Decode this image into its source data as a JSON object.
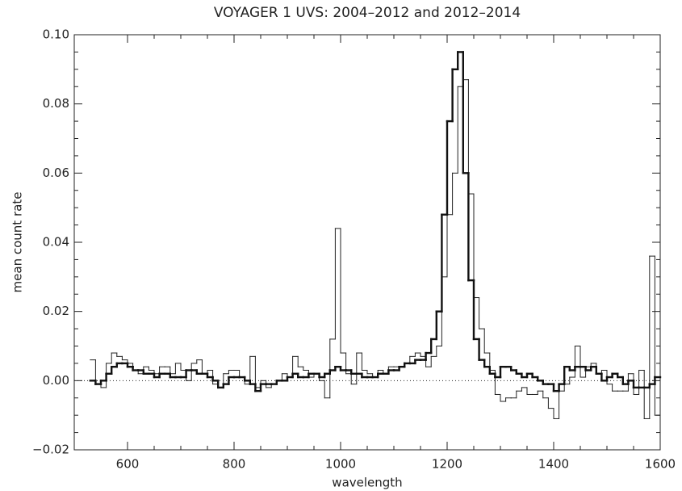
{
  "chart_data": {
    "type": "line",
    "drawstyle": "steps-mid",
    "title": "VOYAGER 1 UVS: 2004–2012 and 2012–2014",
    "xlabel": "wavelength",
    "ylabel": "mean count rate",
    "xlim": [
      500,
      1600
    ],
    "ylim": [
      -0.02,
      0.1
    ],
    "xticks": [
      600,
      800,
      1000,
      1200,
      1400,
      1600
    ],
    "yticks": [
      {
        "value": -0.02,
        "label": "−0.02"
      },
      {
        "value": 0,
        "label": "0.00"
      },
      {
        "value": 0.02,
        "label": "0.02"
      },
      {
        "value": 0.04,
        "label": "0.04"
      },
      {
        "value": 0.06,
        "label": "0.06"
      },
      {
        "value": 0.08,
        "label": "0.08"
      },
      {
        "value": 0.1,
        "label": "0.10"
      }
    ],
    "minor_divisions": {
      "x": 4,
      "y": 4
    },
    "reference_line": 0,
    "x": [
      535,
      545,
      555,
      565,
      575,
      585,
      595,
      605,
      615,
      625,
      635,
      645,
      655,
      665,
      675,
      685,
      695,
      705,
      715,
      725,
      735,
      745,
      755,
      765,
      775,
      785,
      795,
      805,
      815,
      825,
      835,
      845,
      855,
      865,
      875,
      885,
      895,
      905,
      915,
      925,
      935,
      945,
      955,
      965,
      975,
      985,
      995,
      1005,
      1015,
      1025,
      1035,
      1045,
      1055,
      1065,
      1075,
      1085,
      1095,
      1105,
      1115,
      1125,
      1135,
      1145,
      1155,
      1165,
      1175,
      1185,
      1195,
      1205,
      1215,
      1225,
      1235,
      1245,
      1255,
      1265,
      1275,
      1285,
      1295,
      1305,
      1315,
      1325,
      1335,
      1345,
      1355,
      1365,
      1375,
      1385,
      1395,
      1405,
      1415,
      1425,
      1435,
      1445,
      1455,
      1465,
      1475,
      1485,
      1495,
      1505,
      1515,
      1525,
      1535,
      1545,
      1555,
      1565,
      1575,
      1585,
      1595
    ],
    "series": [
      {
        "color": "#222222",
        "width": 1,
        "values": [
          0.006,
          -0.001,
          -0.002,
          0.005,
          0.008,
          0.007,
          0.006,
          0.005,
          0.003,
          0.002,
          0.004,
          0.003,
          0.002,
          0.004,
          0.004,
          0.002,
          0.005,
          0.003,
          0.0,
          0.005,
          0.006,
          0.002,
          0.003,
          -0.001,
          -0.002,
          0.002,
          0.003,
          0.003,
          0.001,
          -0.001,
          0.007,
          -0.002,
          0.0,
          -0.002,
          -0.001,
          0.0,
          0.002,
          0.001,
          0.007,
          0.004,
          0.003,
          0.001,
          0.002,
          0.0,
          -0.005,
          0.012,
          0.044,
          0.008,
          0.002,
          -0.001,
          0.008,
          0.003,
          0.002,
          0.001,
          0.003,
          0.002,
          0.004,
          0.004,
          0.004,
          0.005,
          0.007,
          0.008,
          0.007,
          0.004,
          0.007,
          0.01,
          0.03,
          0.048,
          0.06,
          0.085,
          0.087,
          0.054,
          0.024,
          0.015,
          0.008,
          0.003,
          -0.004,
          -0.006,
          -0.005,
          -0.005,
          -0.003,
          -0.002,
          -0.004,
          -0.004,
          -0.003,
          -0.005,
          -0.008,
          -0.011,
          -0.003,
          -0.001,
          0.001,
          0.01,
          0.001,
          0.004,
          0.005,
          0.002,
          0.003,
          -0.001,
          -0.003,
          -0.003,
          -0.003,
          0.002,
          -0.004,
          0.003,
          -0.011,
          0.036,
          -0.01
        ]
      },
      {
        "color": "#111111",
        "width": 2.4,
        "values": [
          0.0,
          -0.001,
          0.0,
          0.002,
          0.004,
          0.005,
          0.005,
          0.004,
          0.003,
          0.003,
          0.002,
          0.002,
          0.001,
          0.002,
          0.002,
          0.001,
          0.001,
          0.001,
          0.003,
          0.003,
          0.002,
          0.002,
          0.001,
          0.0,
          -0.002,
          -0.001,
          0.001,
          0.001,
          0.001,
          0.0,
          -0.001,
          -0.003,
          -0.001,
          -0.001,
          -0.001,
          0.0,
          0.0,
          0.001,
          0.002,
          0.001,
          0.001,
          0.002,
          0.002,
          0.001,
          0.002,
          0.003,
          0.004,
          0.003,
          0.003,
          0.002,
          0.002,
          0.001,
          0.001,
          0.001,
          0.002,
          0.002,
          0.003,
          0.003,
          0.004,
          0.005,
          0.005,
          0.006,
          0.006,
          0.008,
          0.012,
          0.02,
          0.048,
          0.075,
          0.09,
          0.095,
          0.06,
          0.029,
          0.012,
          0.006,
          0.004,
          0.002,
          0.001,
          0.004,
          0.004,
          0.003,
          0.002,
          0.001,
          0.002,
          0.001,
          0.0,
          -0.001,
          -0.001,
          -0.003,
          -0.001,
          0.004,
          0.003,
          0.004,
          0.004,
          0.003,
          0.004,
          0.002,
          0.0,
          0.001,
          0.002,
          0.001,
          -0.001,
          0.0,
          -0.002,
          -0.002,
          -0.002,
          -0.001,
          0.001
        ]
      }
    ]
  }
}
